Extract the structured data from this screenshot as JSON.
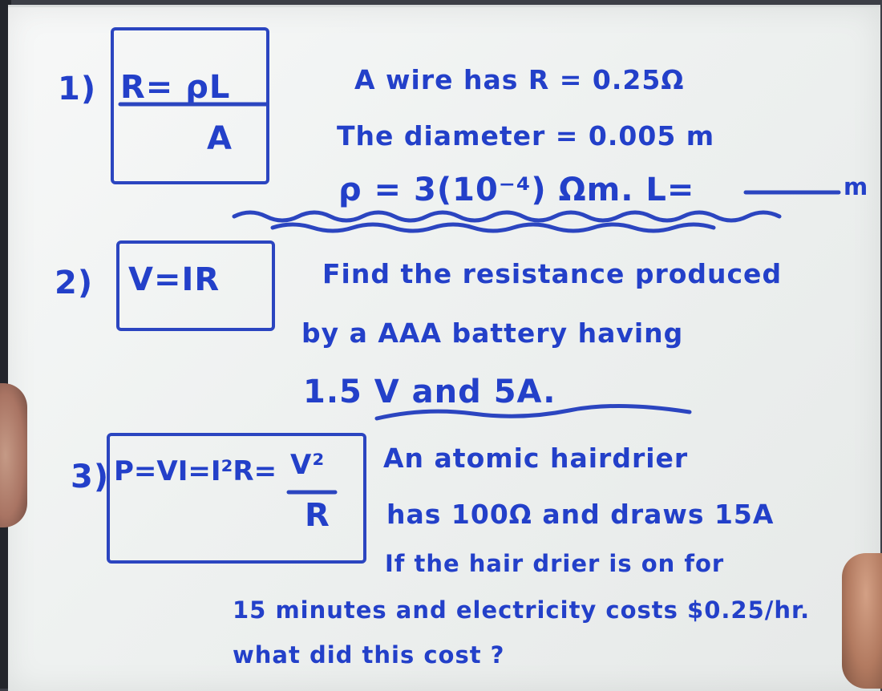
{
  "problems": [
    {
      "number": "1)",
      "formula_top": "R= ρL",
      "formula_bottom": "A",
      "lines": [
        "A wire has R = 0.25Ω",
        "The diameter = 0.005 m",
        "ρ = 3(10⁻⁴) Ωm.  L=",
        "m"
      ]
    },
    {
      "number": "2)",
      "formula_top": "V=IR",
      "lines": [
        "Find the resistance produced",
        "by a AAA battery having",
        "1.5 V  and 5A."
      ]
    },
    {
      "number": "3)",
      "formula_top": "P=VI=I²R=",
      "formula_frac_top": "V²",
      "formula_frac_bottom": "R",
      "lines": [
        "An atomic hairdrier",
        "has 100Ω and draws 15A",
        "If the hair drier is on for",
        "15 minutes and electricity costs $0.25/hr.",
        "what did this cost ?"
      ]
    }
  ],
  "colors": {
    "marker": "#2340c9",
    "board": "#f1f3f2"
  }
}
